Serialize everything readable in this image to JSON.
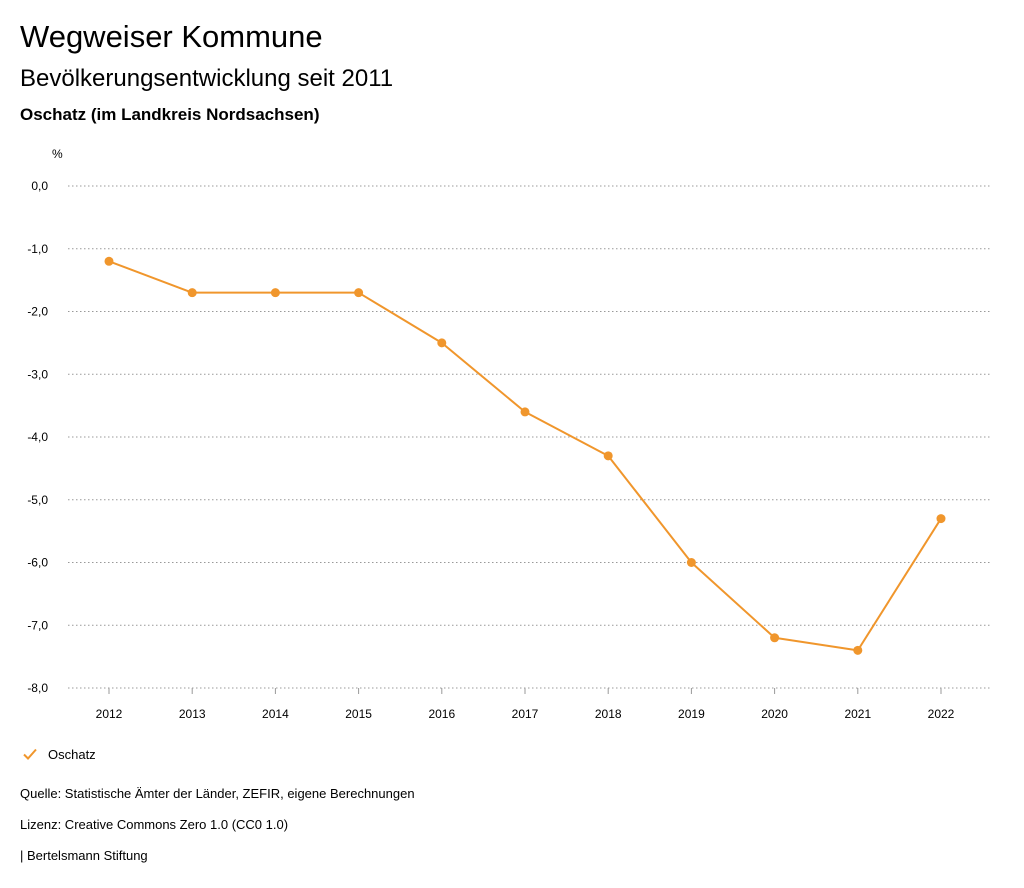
{
  "header": {
    "title": "Wegweiser Kommune",
    "subtitle": "Bevölkerungsentwicklung seit 2011",
    "region": "Oschatz (im Landkreis Nordsachsen)"
  },
  "legend": {
    "label": "Oschatz",
    "icon": "check-icon"
  },
  "footer": {
    "source": "Quelle: Statistische Ämter der Länder, ZEFIR, eigene Berechnungen",
    "license": "Lizenz: Creative Commons Zero 1.0 (CC0 1.0)",
    "publisher": "| Bertelsmann Stiftung"
  },
  "colors": {
    "series": "#f0962c",
    "grid": "#999999",
    "text": "#000000"
  },
  "chart_data": {
    "type": "line",
    "ylabel": "%",
    "xlabel": "",
    "categories": [
      "2012",
      "2013",
      "2014",
      "2015",
      "2016",
      "2017",
      "2018",
      "2019",
      "2020",
      "2021",
      "2022"
    ],
    "series": [
      {
        "name": "Oschatz",
        "values": [
          -1.2,
          -1.7,
          -1.7,
          -1.7,
          -2.5,
          -3.6,
          -4.3,
          -6.0,
          -7.2,
          -7.4,
          -5.3
        ]
      }
    ],
    "ylim": [
      -8,
      0
    ],
    "yticks": [
      0,
      -1,
      -2,
      -3,
      -4,
      -5,
      -6,
      -7,
      -8
    ],
    "ytick_labels": [
      "0,0",
      "-1,0",
      "-2,0",
      "-3,0",
      "-4,0",
      "-5,0",
      "-6,0",
      "-7,0",
      "-8,0"
    ],
    "grid": true,
    "legend_position": "bottom-left"
  }
}
